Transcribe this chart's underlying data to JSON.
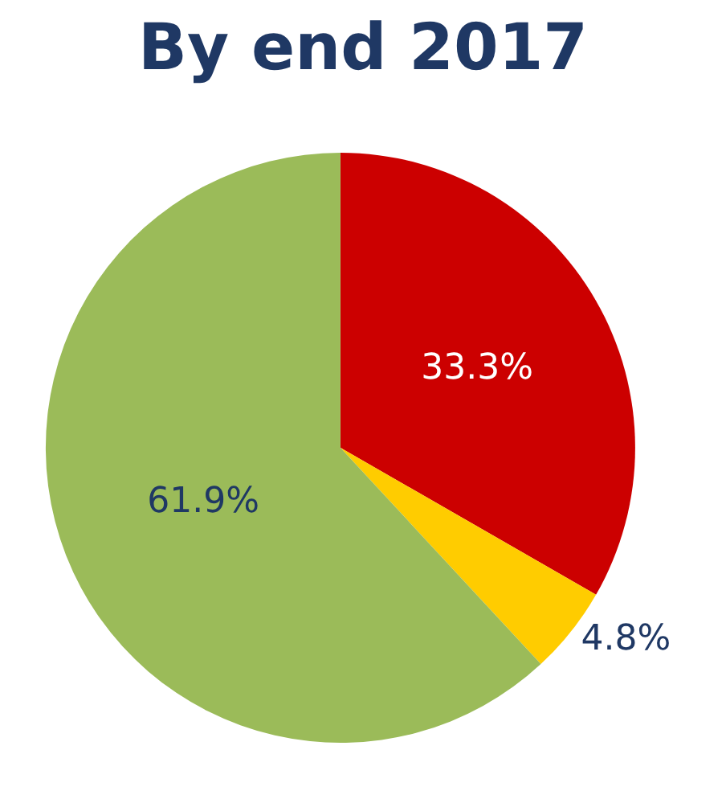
{
  "chart_data": {
    "type": "pie",
    "title": "By end 2017",
    "categories": [
      null,
      null,
      null
    ],
    "values": [
      33.3,
      4.8,
      61.9
    ],
    "colors": [
      "#cc0000",
      "#ffcc00",
      "#9bbb59"
    ],
    "value_labels": [
      "33.3%",
      "4.8%",
      "61.9%"
    ],
    "legend": false
  }
}
